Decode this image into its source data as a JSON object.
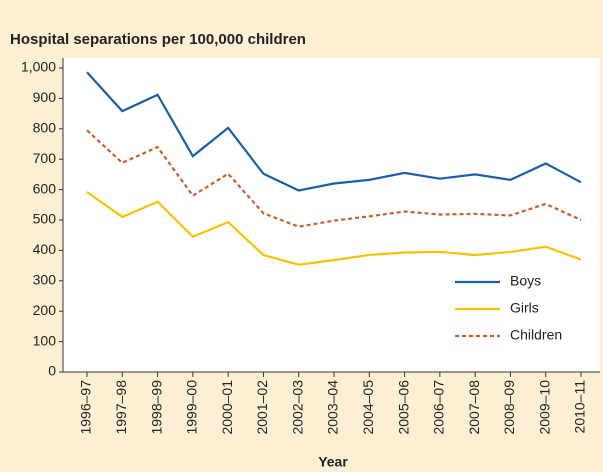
{
  "chart_data": {
    "type": "line",
    "title": "Hospital separations per 100,000 children",
    "x_label": "Year",
    "categories": [
      "1996–97",
      "1997–98",
      "1998–99",
      "1999–00",
      "2000–01",
      "2001–02",
      "2002–03",
      "2003–04",
      "2004–05",
      "2005–06",
      "2006–07",
      "2007–08",
      "2008–09",
      "2009–10",
      "2010–11"
    ],
    "series": [
      {
        "name": "Boys",
        "color": "#1a5fa8",
        "dash": false,
        "values": [
          986,
          858,
          912,
          710,
          803,
          652,
          597,
          620,
          632,
          655,
          636,
          650,
          632,
          686,
          624
        ]
      },
      {
        "name": "Girls",
        "color": "#f5c400",
        "dash": false,
        "values": [
          592,
          510,
          560,
          445,
          493,
          385,
          353,
          368,
          385,
          393,
          395,
          385,
          395,
          412,
          370
        ]
      },
      {
        "name": "Children",
        "color": "#c8622a",
        "dash": true,
        "values": [
          795,
          688,
          740,
          580,
          652,
          522,
          478,
          498,
          512,
          528,
          518,
          520,
          515,
          553,
          500
        ]
      }
    ],
    "ylim": [
      0,
      1000
    ],
    "yticks": [
      0,
      100,
      200,
      300,
      400,
      500,
      600,
      700,
      800,
      900,
      {
        "value": 1000,
        "label": "1,000"
      }
    ],
    "grid": false,
    "legend": "lower right"
  }
}
